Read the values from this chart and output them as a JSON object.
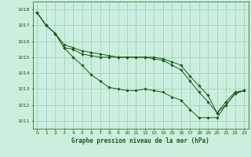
{
  "title": "Graphe pression niveau de la mer (hPa)",
  "bg_color": "#cceedd",
  "grid_color": "#99ccbb",
  "line_color": "#1a5c1a",
  "xlim": [
    -0.5,
    23.5
  ],
  "ylim": [
    1010.5,
    1018.5
  ],
  "yticks": [
    1011,
    1012,
    1013,
    1014,
    1015,
    1016,
    1017,
    1018
  ],
  "xticks": [
    0,
    1,
    2,
    3,
    4,
    5,
    6,
    7,
    8,
    9,
    10,
    11,
    12,
    13,
    14,
    15,
    16,
    17,
    18,
    19,
    20,
    21,
    22,
    23
  ],
  "series": [
    [
      1017.8,
      1017.0,
      1016.5,
      1015.6,
      1015.0,
      1014.5,
      1013.9,
      1013.5,
      1013.1,
      1013.0,
      1012.9,
      1012.9,
      1013.0,
      1012.9,
      1012.8,
      1012.5,
      1012.3,
      1011.7,
      1011.2,
      1011.2,
      1011.2,
      1012.0,
      1012.7,
      1012.9
    ],
    [
      1017.8,
      1017.0,
      1016.5,
      1015.6,
      1015.5,
      1015.2,
      1015.1,
      1015.0,
      1015.0,
      1015.0,
      1015.0,
      1015.0,
      1015.0,
      1014.9,
      1014.8,
      1014.5,
      1014.2,
      1013.5,
      1012.8,
      1012.2,
      1011.5,
      1012.0,
      1012.7,
      1012.9
    ],
    [
      1017.8,
      1017.0,
      1016.5,
      1015.8,
      1015.6,
      1015.4,
      1015.3,
      1015.2,
      1015.1,
      1015.0,
      1015.0,
      1015.0,
      1015.0,
      1015.0,
      1014.9,
      1014.7,
      1014.5,
      1013.8,
      1013.2,
      1012.6,
      1011.5,
      1012.2,
      1012.8,
      1012.9
    ]
  ]
}
